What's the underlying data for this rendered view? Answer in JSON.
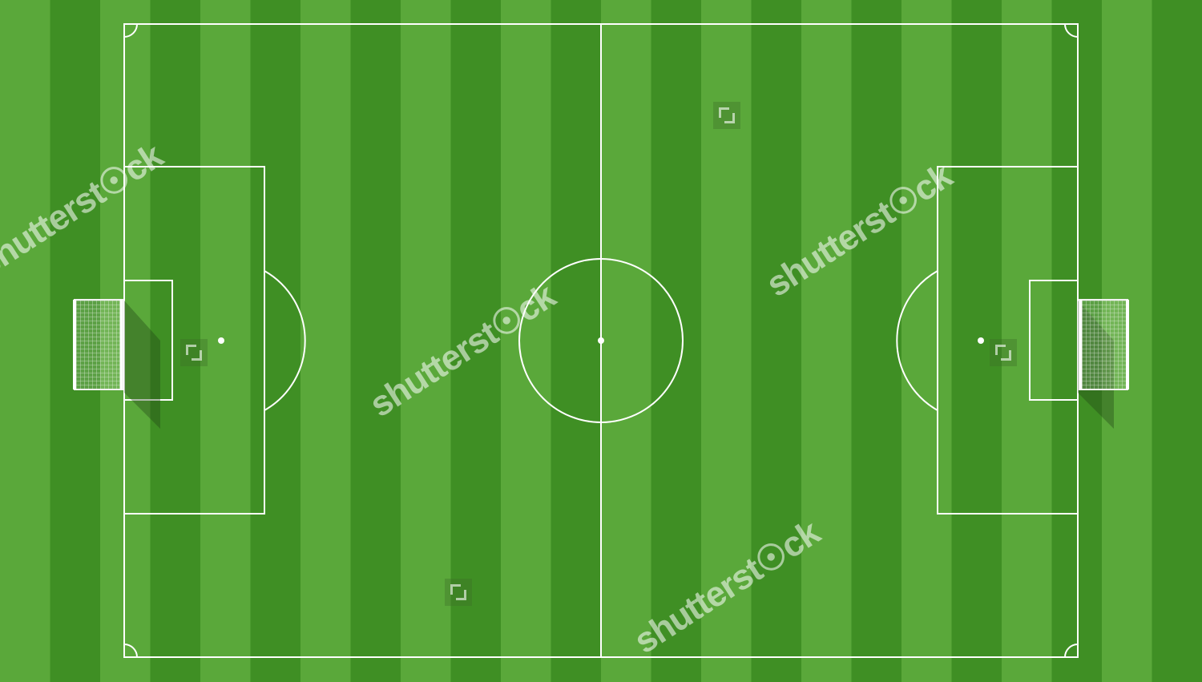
{
  "scene": {
    "description_free": true
  },
  "watermark": {
    "text": "shutterst☉ck",
    "icon_name": "shutterstock-logo-icon"
  },
  "colors": {
    "stripe_dark": "#3f8f24",
    "stripe_light": "#5aa83a",
    "line": "#ffffff",
    "goal_net": "#e8efe4"
  },
  "pitch": {
    "markings": [
      "touchlines",
      "goal-lines",
      "halfway-line",
      "centre-circle",
      "centre-spot",
      "penalty-areas",
      "goal-areas",
      "penalty-spots",
      "penalty-arcs",
      "corner-arcs"
    ],
    "goals": [
      "left-goal",
      "right-goal"
    ]
  }
}
